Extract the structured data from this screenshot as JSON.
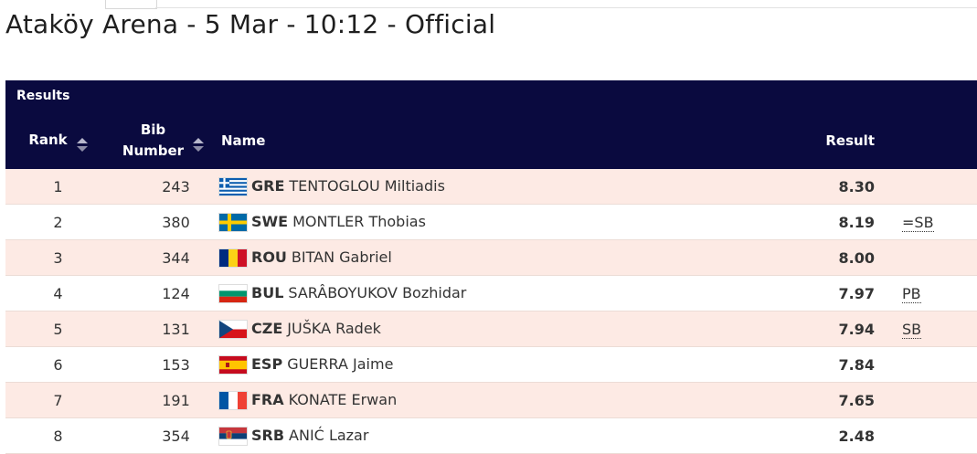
{
  "title": "Ataköy Arena - 5 Mar - 10:12 - Official",
  "table": {
    "caption": "Results",
    "headers": {
      "rank": "Rank",
      "bib_line1": "Bib",
      "bib_line2": "Number",
      "name": "Name",
      "result": "Result"
    },
    "rows": [
      {
        "rank": "1",
        "bib": "243",
        "country": "GRE",
        "athlete": "TENTOGLOU Miltiadis",
        "result": "8.30",
        "note": "",
        "flag": "greece-flag-icon"
      },
      {
        "rank": "2",
        "bib": "380",
        "country": "SWE",
        "athlete": "MONTLER Thobias",
        "result": "8.19",
        "note": "=SB",
        "flag": "sweden-flag-icon"
      },
      {
        "rank": "3",
        "bib": "344",
        "country": "ROU",
        "athlete": "BITAN Gabriel",
        "result": "8.00",
        "note": "",
        "flag": "romania-flag-icon"
      },
      {
        "rank": "4",
        "bib": "124",
        "country": "BUL",
        "athlete": "SARÂBOYUKOV Bozhidar",
        "result": "7.97",
        "note": "PB",
        "flag": "bulgaria-flag-icon"
      },
      {
        "rank": "5",
        "bib": "131",
        "country": "CZE",
        "athlete": "JUŠKA Radek",
        "result": "7.94",
        "note": "SB",
        "flag": "czechia-flag-icon"
      },
      {
        "rank": "6",
        "bib": "153",
        "country": "ESP",
        "athlete": "GUERRA Jaime",
        "result": "7.84",
        "note": "",
        "flag": "spain-flag-icon"
      },
      {
        "rank": "7",
        "bib": "191",
        "country": "FRA",
        "athlete": "KONATE Erwan",
        "result": "7.65",
        "note": "",
        "flag": "france-flag-icon"
      },
      {
        "rank": "8",
        "bib": "354",
        "country": "SRB",
        "athlete": "ANIĆ Lazar",
        "result": "2.48",
        "note": "",
        "flag": "serbia-flag-icon"
      }
    ]
  },
  "colors": {
    "header_bg": "#0a0a3f",
    "row_alt_bg": "#fdeae4"
  }
}
